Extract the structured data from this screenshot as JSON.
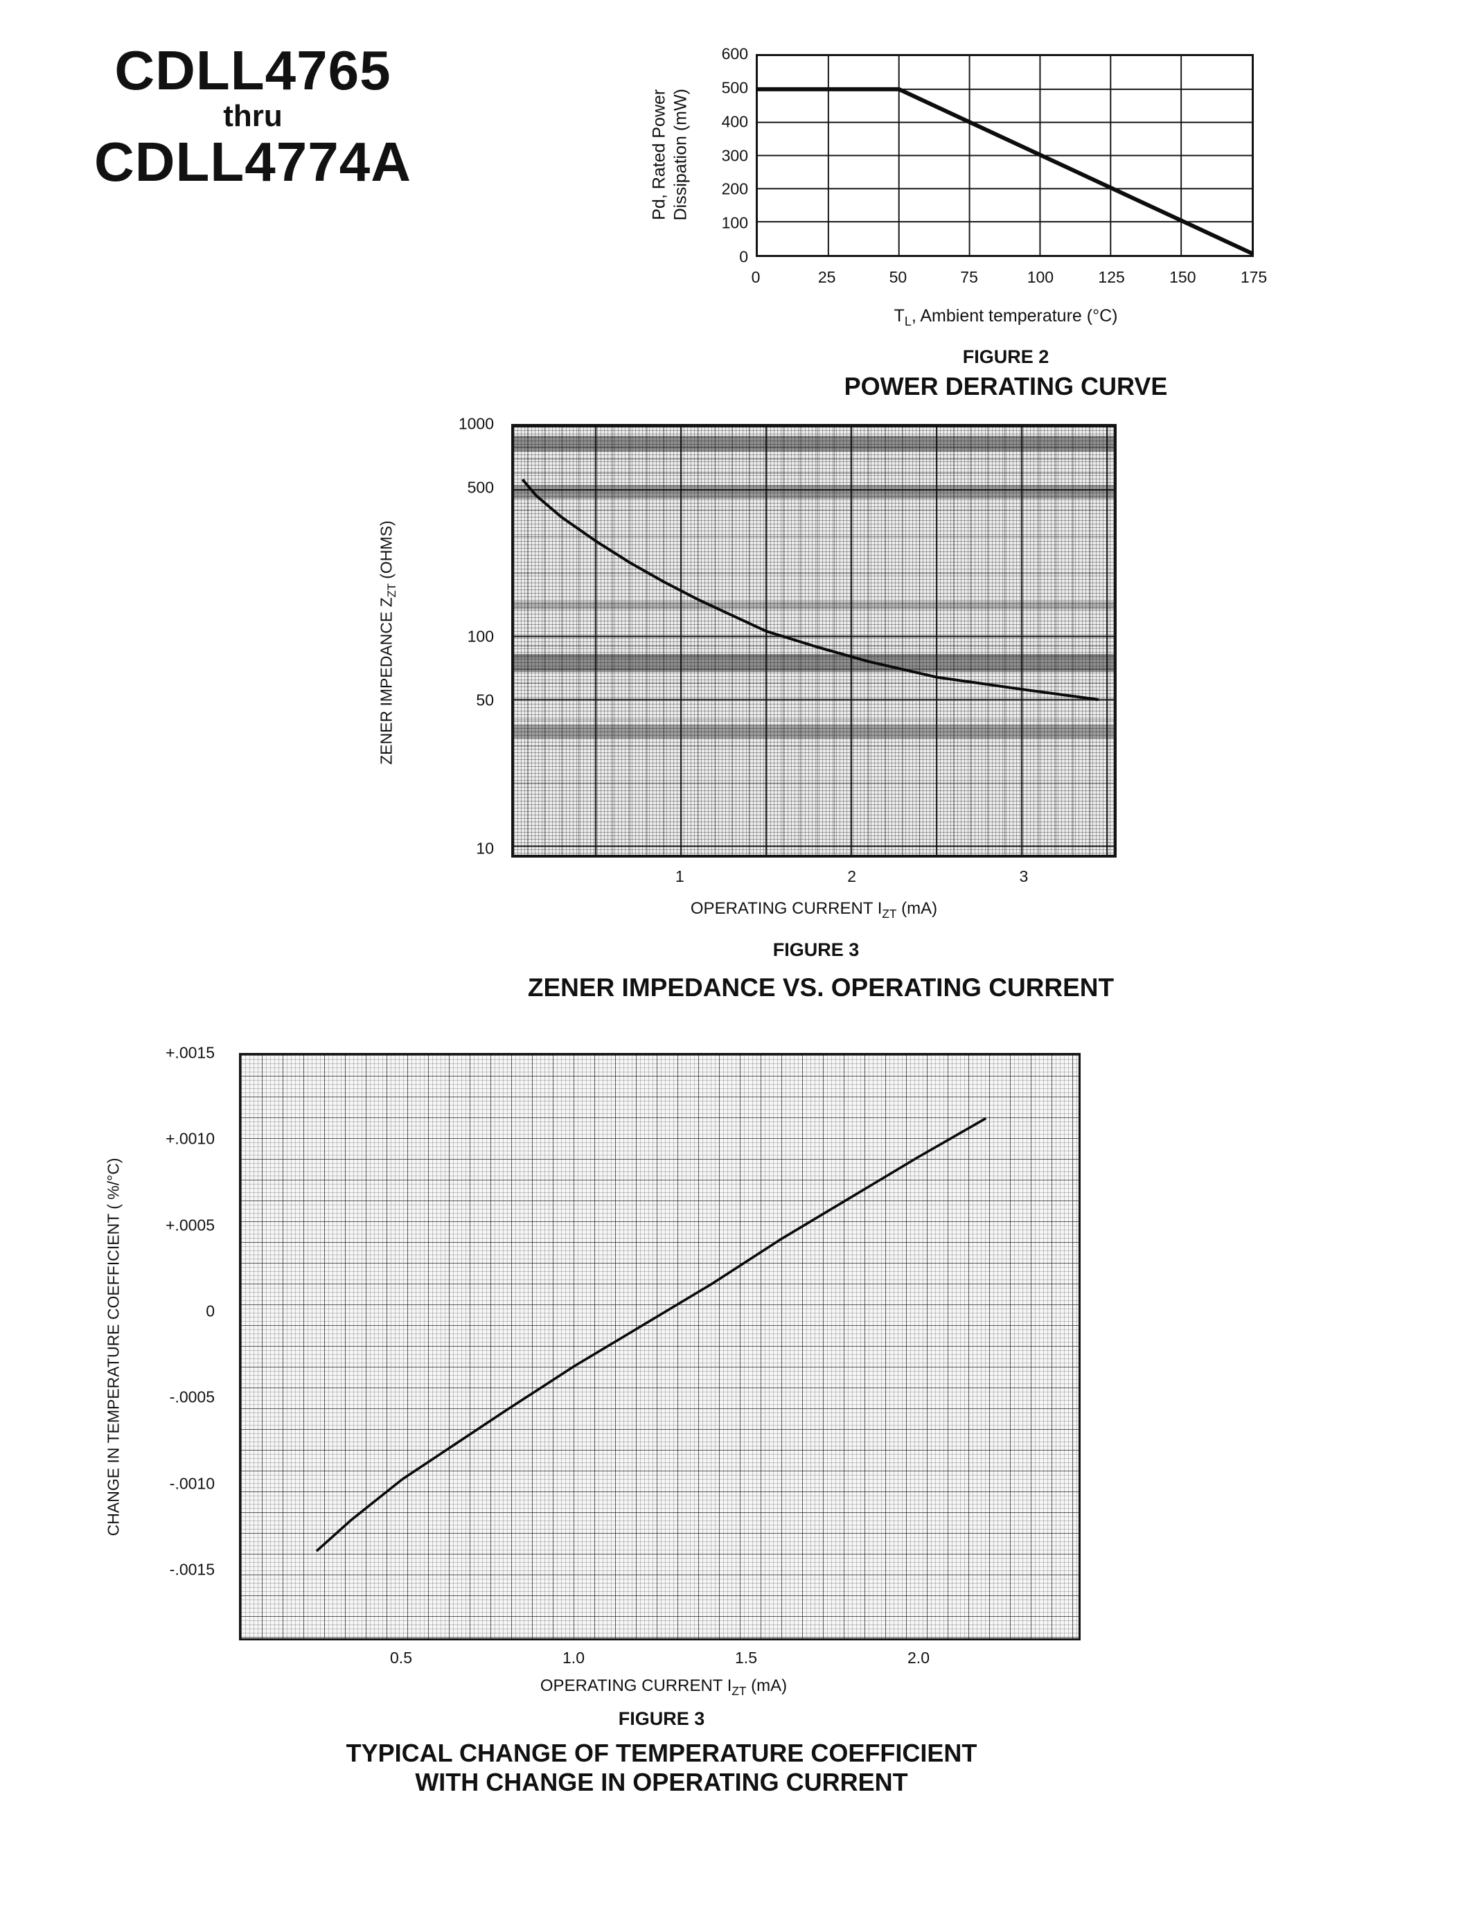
{
  "header": {
    "title_line1": "CDLL4765",
    "title_line2": "thru",
    "title_line3": "CDLL4774A"
  },
  "fig2": {
    "caption_figure": "FIGURE 2",
    "caption_title": "POWER DERATING CURVE",
    "ylabel_line1": "Pd, Rated Power",
    "ylabel_line2": "Dissipation (mW)",
    "xlabel_pre": "T",
    "xlabel_sub": "L",
    "xlabel_post": ", Ambient temperature (°C)"
  },
  "fig3_impedance": {
    "caption_figure": "FIGURE 3",
    "caption_title": "ZENER IMPEDANCE VS. OPERATING CURRENT",
    "ylabel_pre": "ZENER IMPEDANCE Z",
    "ylabel_sub": "ZT",
    "ylabel_post": " (OHMS)",
    "xlabel_pre": "OPERATING CURRENT I",
    "xlabel_sub": "ZT",
    "xlabel_post": " (mA)"
  },
  "fig3_tempco": {
    "caption_figure": "FIGURE 3",
    "caption_title_line1": "TYPICAL CHANGE OF TEMPERATURE COEFFICIENT",
    "caption_title_line2": "WITH CHANGE IN OPERATING CURRENT",
    "ylabel": "CHANGE IN TEMPERATURE COEFFICIENT ( %/°C)",
    "xlabel_pre": "OPERATING CURRENT I",
    "xlabel_sub": "ZT",
    "xlabel_post": " (mA)"
  },
  "chart_data": [
    {
      "id": "power-derating",
      "type": "line",
      "title": "POWER DERATING CURVE",
      "xlabel": "TL, Ambient temperature (°C)",
      "ylabel": "Pd, Rated Power Dissipation (mW)",
      "x_scale": "linear",
      "y_scale": "linear",
      "xlim": [
        0,
        175
      ],
      "ylim": [
        0,
        600
      ],
      "xticks": [
        0,
        25,
        50,
        75,
        100,
        125,
        150,
        175
      ],
      "yticks": [
        0,
        100,
        200,
        300,
        400,
        500,
        600
      ],
      "grid": true,
      "series": [
        {
          "name": "rated-power-mw",
          "points": [
            [
              0,
              500
            ],
            [
              50,
              500
            ],
            [
              175,
              5
            ]
          ]
        }
      ]
    },
    {
      "id": "zener-impedance-vs-current",
      "type": "line",
      "title": "ZENER IMPEDANCE VS. OPERATING CURRENT",
      "xlabel": "OPERATING CURRENT IZT (mA)",
      "ylabel": "ZENER IMPEDANCE ZZT (OHMS)",
      "x_scale": "linear",
      "y_scale": "log",
      "xlim": [
        0.02,
        3.54
      ],
      "ylim": [
        9.1,
        1000
      ],
      "xticks": [
        1,
        2,
        3
      ],
      "xtick_labels": [
        "1",
        "2",
        "3"
      ],
      "yticks": [
        1000,
        500,
        100,
        50,
        10
      ],
      "ytick_labels": [
        "1000",
        "500",
        "100",
        "50",
        "10"
      ],
      "grid": "dense-log-paper",
      "series": [
        {
          "name": "zzt-ohms",
          "points": [
            [
              0.07,
              560
            ],
            [
              0.15,
              470
            ],
            [
              0.3,
              370
            ],
            [
              0.5,
              285
            ],
            [
              0.7,
              225
            ],
            [
              0.9,
              182
            ],
            [
              1.1,
              150
            ],
            [
              1.3,
              126
            ],
            [
              1.5,
              106
            ],
            [
              1.8,
              89
            ],
            [
              2.1,
              76
            ],
            [
              2.5,
              64
            ],
            [
              3.0,
              56
            ],
            [
              3.45,
              50
            ]
          ]
        }
      ]
    },
    {
      "id": "temp-coefficient-change",
      "type": "line",
      "title": "TYPICAL CHANGE OF TEMPERATURE COEFFICIENT WITH CHANGE IN OPERATING CURRENT",
      "xlabel": "OPERATING CURRENT IZT (mA)",
      "ylabel": "CHANGE IN TEMPERATURE COEFFICIENT ( %/°C)",
      "x_scale": "linear",
      "y_scale": "linear",
      "xlim": [
        0.03,
        2.47
      ],
      "ylim": [
        -0.00191,
        0.0015
      ],
      "xticks": [
        0.5,
        1.0,
        1.5,
        2.0
      ],
      "xtick_labels": [
        "0.5",
        "1.0",
        "1.5",
        "2.0"
      ],
      "yticks": [
        0.0015,
        0.001,
        0.0005,
        0,
        -0.0005,
        -0.001,
        -0.0015
      ],
      "ytick_labels": [
        "+.0015",
        "+.0010",
        "+.0005",
        "0",
        "-.0005",
        "-.0010",
        "-.0015"
      ],
      "grid": "dense-graph-paper",
      "series": [
        {
          "name": "tc-change-pct-per-degc",
          "points": [
            [
              0.25,
              -0.0014
            ],
            [
              0.35,
              -0.00122
            ],
            [
              0.5,
              -0.00098
            ],
            [
              0.65,
              -0.00078
            ],
            [
              0.8,
              -0.00058
            ],
            [
              1.0,
              -0.00032
            ],
            [
              1.2,
              -8e-05
            ],
            [
              1.4,
              0.00016
            ],
            [
              1.6,
              0.00042
            ],
            [
              1.8,
              0.00066
            ],
            [
              2.0,
              0.0009
            ],
            [
              2.2,
              0.00113
            ]
          ]
        }
      ]
    }
  ]
}
